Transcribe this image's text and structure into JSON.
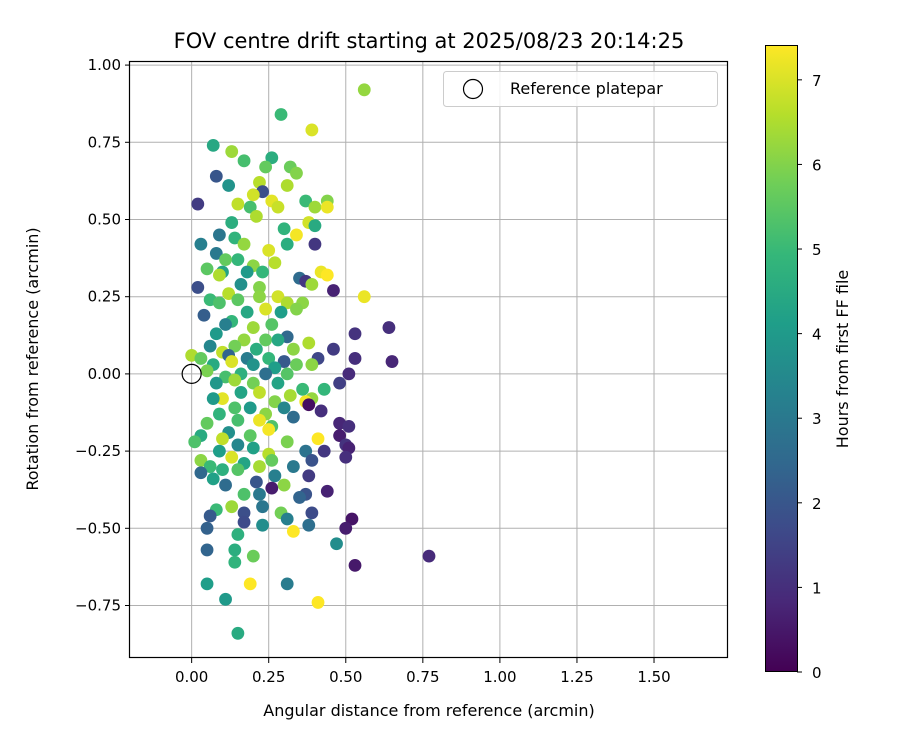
{
  "chart_data": {
    "type": "scatter",
    "title": "FOV centre drift starting at 2025/08/23 20:14:25",
    "xlabel": "Angular distance from reference (arcmin)",
    "ylabel": "Rotation from reference (arcmin)",
    "xlim": [
      -0.2,
      1.74
    ],
    "ylim": [
      -0.92,
      1.01
    ],
    "xticks": [
      "0.00",
      "0.25",
      "0.50",
      "0.75",
      "1.00",
      "1.25",
      "1.50"
    ],
    "xtick_values": [
      0,
      0.25,
      0.5,
      0.75,
      1.0,
      1.25,
      1.5
    ],
    "yticks": [
      "−0.75",
      "−0.50",
      "−0.25",
      "0.00",
      "0.25",
      "0.50",
      "0.75",
      "1.00"
    ],
    "ytick_values": [
      -0.75,
      -0.5,
      -0.25,
      0,
      0.25,
      0.5,
      0.75,
      1.0
    ],
    "grid": true,
    "legend": {
      "label": "Reference platepar",
      "position": "top-right"
    },
    "reference_point": {
      "x": 0,
      "y": 0
    },
    "colorbar": {
      "label": "Hours from first FF file",
      "min": 0,
      "max": 7.4,
      "ticks": [
        "0",
        "1",
        "2",
        "3",
        "4",
        "5",
        "6",
        "7"
      ],
      "tick_values": [
        0,
        1,
        2,
        3,
        4,
        5,
        6,
        7
      ],
      "colormap": "viridis"
    },
    "points": [
      [
        0.56,
        0.92,
        6.2
      ],
      [
        0.29,
        0.84,
        5.0
      ],
      [
        0.39,
        0.79,
        7.0
      ],
      [
        0.07,
        0.74,
        4.4
      ],
      [
        0.13,
        0.72,
        6.3
      ],
      [
        0.26,
        0.7,
        4.6
      ],
      [
        0.32,
        0.67,
        5.7
      ],
      [
        0.24,
        0.67,
        5.6
      ],
      [
        0.17,
        0.69,
        5.2
      ],
      [
        0.34,
        0.65,
        6.0
      ],
      [
        0.08,
        0.64,
        2.0
      ],
      [
        0.12,
        0.61,
        3.8
      ],
      [
        0.22,
        0.62,
        6.6
      ],
      [
        0.31,
        0.61,
        6.5
      ],
      [
        0.23,
        0.59,
        1.8
      ],
      [
        0.2,
        0.58,
        6.9
      ],
      [
        0.26,
        0.56,
        7.1
      ],
      [
        0.15,
        0.55,
        6.7
      ],
      [
        0.37,
        0.56,
        5.0
      ],
      [
        0.44,
        0.56,
        6.0
      ],
      [
        0.02,
        0.55,
        1.3
      ],
      [
        0.19,
        0.54,
        5.2
      ],
      [
        0.28,
        0.54,
        6.8
      ],
      [
        0.4,
        0.54,
        6.3
      ],
      [
        0.44,
        0.54,
        7.2
      ],
      [
        0.21,
        0.51,
        6.5
      ],
      [
        0.38,
        0.49,
        6.9
      ],
      [
        0.13,
        0.49,
        4.6
      ],
      [
        0.3,
        0.47,
        4.8
      ],
      [
        0.4,
        0.48,
        4.5
      ],
      [
        0.34,
        0.45,
        7.3
      ],
      [
        0.14,
        0.44,
        4.8
      ],
      [
        0.09,
        0.45,
        2.9
      ],
      [
        0.17,
        0.42,
        6.2
      ],
      [
        0.31,
        0.42,
        4.6
      ],
      [
        0.03,
        0.42,
        3.2
      ],
      [
        0.4,
        0.42,
        1.2
      ],
      [
        0.25,
        0.4,
        7.0
      ],
      [
        0.08,
        0.39,
        3.0
      ],
      [
        0.15,
        0.37,
        4.9
      ],
      [
        0.11,
        0.37,
        5.6
      ],
      [
        0.2,
        0.35,
        6.1
      ],
      [
        0.27,
        0.36,
        6.6
      ],
      [
        0.05,
        0.34,
        5.5
      ],
      [
        0.1,
        0.33,
        4.3
      ],
      [
        0.18,
        0.33,
        4.0
      ],
      [
        0.23,
        0.33,
        4.9
      ],
      [
        0.42,
        0.33,
        7.2
      ],
      [
        0.44,
        0.32,
        7.4
      ],
      [
        0.09,
        0.32,
        6.5
      ],
      [
        0.35,
        0.31,
        2.6
      ],
      [
        0.37,
        0.3,
        1.2
      ],
      [
        0.02,
        0.28,
        1.8
      ],
      [
        0.16,
        0.29,
        3.7
      ],
      [
        0.22,
        0.28,
        6.0
      ],
      [
        0.39,
        0.29,
        6.3
      ],
      [
        0.46,
        0.27,
        0.7
      ],
      [
        0.12,
        0.26,
        6.6
      ],
      [
        0.22,
        0.25,
        6.1
      ],
      [
        0.28,
        0.25,
        6.9
      ],
      [
        0.56,
        0.25,
        7.2
      ],
      [
        0.06,
        0.24,
        5.0
      ],
      [
        0.15,
        0.24,
        5.5
      ],
      [
        0.31,
        0.23,
        6.5
      ],
      [
        0.36,
        0.23,
        6.1
      ],
      [
        0.09,
        0.23,
        5.3
      ],
      [
        0.24,
        0.21,
        7.0
      ],
      [
        0.18,
        0.2,
        4.4
      ],
      [
        0.04,
        0.19,
        2.2
      ],
      [
        0.29,
        0.2,
        4.1
      ],
      [
        0.34,
        0.21,
        6.0
      ],
      [
        0.13,
        0.17,
        4.9
      ],
      [
        0.11,
        0.16,
        3.2
      ],
      [
        0.26,
        0.16,
        5.4
      ],
      [
        0.2,
        0.15,
        6.3
      ],
      [
        0.64,
        0.15,
        1.0
      ],
      [
        0.08,
        0.13,
        4.0
      ],
      [
        0.31,
        0.12,
        2.5
      ],
      [
        0.17,
        0.11,
        6.2
      ],
      [
        0.24,
        0.11,
        5.6
      ],
      [
        0.28,
        0.11,
        4.4
      ],
      [
        0.53,
        0.13,
        1.1
      ],
      [
        0.38,
        0.1,
        6.5
      ],
      [
        0.06,
        0.09,
        3.4
      ],
      [
        0.14,
        0.09,
        5.8
      ],
      [
        0.21,
        0.08,
        4.6
      ],
      [
        0.33,
        0.08,
        6.1
      ],
      [
        0.46,
        0.08,
        1.3
      ],
      [
        0.1,
        0.07,
        6.7
      ],
      [
        0.12,
        0.06,
        2.4
      ],
      [
        0.0,
        0.06,
        6.5
      ],
      [
        0.03,
        0.05,
        5.6
      ],
      [
        0.18,
        0.05,
        3.1
      ],
      [
        0.25,
        0.05,
        4.9
      ],
      [
        0.3,
        0.04,
        2.1
      ],
      [
        0.41,
        0.05,
        1.6
      ],
      [
        0.53,
        0.05,
        1.0
      ],
      [
        0.65,
        0.04,
        0.8
      ],
      [
        0.07,
        0.03,
        4.5
      ],
      [
        0.13,
        0.04,
        7.0
      ],
      [
        0.2,
        0.03,
        3.8
      ],
      [
        0.27,
        0.02,
        4.1
      ],
      [
        0.34,
        0.03,
        5.7
      ],
      [
        0.39,
        0.03,
        6.1
      ],
      [
        0.05,
        0.01,
        5.9
      ],
      [
        0.16,
        0.0,
        4.7
      ],
      [
        0.24,
        0.0,
        2.7
      ],
      [
        0.31,
        0.0,
        5.4
      ],
      [
        0.11,
        -0.01,
        5.2
      ],
      [
        0.51,
        0.0,
        0.9
      ],
      [
        0.48,
        -0.03,
        1.4
      ],
      [
        0.08,
        -0.03,
        3.9
      ],
      [
        0.14,
        -0.02,
        6.3
      ],
      [
        0.2,
        -0.03,
        5.8
      ],
      [
        0.28,
        -0.03,
        4.3
      ],
      [
        0.43,
        -0.05,
        4.9
      ],
      [
        0.36,
        -0.05,
        5.0
      ],
      [
        0.16,
        -0.06,
        4.3
      ],
      [
        0.22,
        -0.06,
        6.7
      ],
      [
        0.1,
        -0.08,
        7.1
      ],
      [
        0.32,
        -0.07,
        6.4
      ],
      [
        0.39,
        -0.08,
        6.2
      ],
      [
        0.07,
        -0.08,
        4.0
      ],
      [
        0.27,
        -0.09,
        6.0
      ],
      [
        0.37,
        -0.09,
        7.3
      ],
      [
        0.38,
        -0.1,
        0.3
      ],
      [
        0.3,
        -0.11,
        3.4
      ],
      [
        0.14,
        -0.11,
        5.3
      ],
      [
        0.19,
        -0.11,
        4.0
      ],
      [
        0.09,
        -0.13,
        4.8
      ],
      [
        0.42,
        -0.12,
        1.0
      ],
      [
        0.24,
        -0.13,
        6.1
      ],
      [
        0.33,
        -0.14,
        2.6
      ],
      [
        0.15,
        -0.15,
        5.2
      ],
      [
        0.22,
        -0.15,
        7.2
      ],
      [
        0.05,
        -0.16,
        5.6
      ],
      [
        0.48,
        -0.16,
        0.8
      ],
      [
        0.26,
        -0.17,
        5.3
      ],
      [
        0.51,
        -0.17,
        1.0
      ],
      [
        0.12,
        -0.19,
        3.7
      ],
      [
        0.25,
        -0.18,
        7.3
      ],
      [
        0.48,
        -0.2,
        0.6
      ],
      [
        0.03,
        -0.2,
        4.5
      ],
      [
        0.19,
        -0.2,
        5.5
      ],
      [
        0.41,
        -0.21,
        7.4
      ],
      [
        0.1,
        -0.21,
        6.7
      ],
      [
        0.31,
        -0.22,
        5.9
      ],
      [
        0.15,
        -0.23,
        3.4
      ],
      [
        0.01,
        -0.22,
        5.3
      ],
      [
        0.2,
        -0.24,
        4.2
      ],
      [
        0.5,
        -0.23,
        1.1
      ],
      [
        0.51,
        -0.24,
        0.7
      ],
      [
        0.37,
        -0.25,
        2.8
      ],
      [
        0.43,
        -0.25,
        1.2
      ],
      [
        0.09,
        -0.25,
        4.1
      ],
      [
        0.25,
        -0.26,
        6.6
      ],
      [
        0.03,
        -0.28,
        6.1
      ],
      [
        0.13,
        -0.27,
        7.0
      ],
      [
        0.26,
        -0.28,
        5.6
      ],
      [
        0.39,
        -0.28,
        1.9
      ],
      [
        0.5,
        -0.27,
        1.0
      ],
      [
        0.06,
        -0.3,
        5.0
      ],
      [
        0.17,
        -0.29,
        4.3
      ],
      [
        0.22,
        -0.3,
        6.4
      ],
      [
        0.33,
        -0.3,
        3.0
      ],
      [
        0.1,
        -0.31,
        4.7
      ],
      [
        0.15,
        -0.31,
        5.4
      ],
      [
        0.03,
        -0.32,
        2.5
      ],
      [
        0.27,
        -0.33,
        3.2
      ],
      [
        0.38,
        -0.33,
        1.3
      ],
      [
        0.07,
        -0.34,
        4.2
      ],
      [
        0.21,
        -0.35,
        2.0
      ],
      [
        0.11,
        -0.36,
        2.6
      ],
      [
        0.3,
        -0.36,
        6.1
      ],
      [
        0.26,
        -0.37,
        0.6
      ],
      [
        0.44,
        -0.38,
        0.7
      ],
      [
        0.17,
        -0.39,
        5.3
      ],
      [
        0.22,
        -0.39,
        3.0
      ],
      [
        0.37,
        -0.39,
        1.9
      ],
      [
        0.35,
        -0.4,
        2.4
      ],
      [
        0.13,
        -0.43,
        6.3
      ],
      [
        0.23,
        -0.43,
        2.9
      ],
      [
        0.39,
        -0.45,
        1.7
      ],
      [
        0.08,
        -0.44,
        5.0
      ],
      [
        0.17,
        -0.45,
        1.8
      ],
      [
        0.29,
        -0.45,
        5.8
      ],
      [
        0.06,
        -0.46,
        2.1
      ],
      [
        0.52,
        -0.47,
        0.4
      ],
      [
        0.17,
        -0.48,
        1.7
      ],
      [
        0.23,
        -0.49,
        3.6
      ],
      [
        0.31,
        -0.47,
        3.2
      ],
      [
        0.38,
        -0.49,
        2.7
      ],
      [
        0.5,
        -0.5,
        0.6
      ],
      [
        0.05,
        -0.5,
        2.3
      ],
      [
        0.33,
        -0.51,
        7.4
      ],
      [
        0.15,
        -0.52,
        4.7
      ],
      [
        0.47,
        -0.55,
        3.6
      ],
      [
        0.05,
        -0.57,
        2.4
      ],
      [
        0.14,
        -0.57,
        4.6
      ],
      [
        0.2,
        -0.59,
        5.7
      ],
      [
        0.77,
        -0.59,
        0.9
      ],
      [
        0.14,
        -0.61,
        4.8
      ],
      [
        0.53,
        -0.62,
        0.5
      ],
      [
        0.05,
        -0.68,
        4.1
      ],
      [
        0.19,
        -0.68,
        7.4
      ],
      [
        0.31,
        -0.68,
        3.1
      ],
      [
        0.11,
        -0.73,
        4.0
      ],
      [
        0.41,
        -0.74,
        7.4
      ],
      [
        0.15,
        -0.84,
        4.5
      ]
    ]
  }
}
